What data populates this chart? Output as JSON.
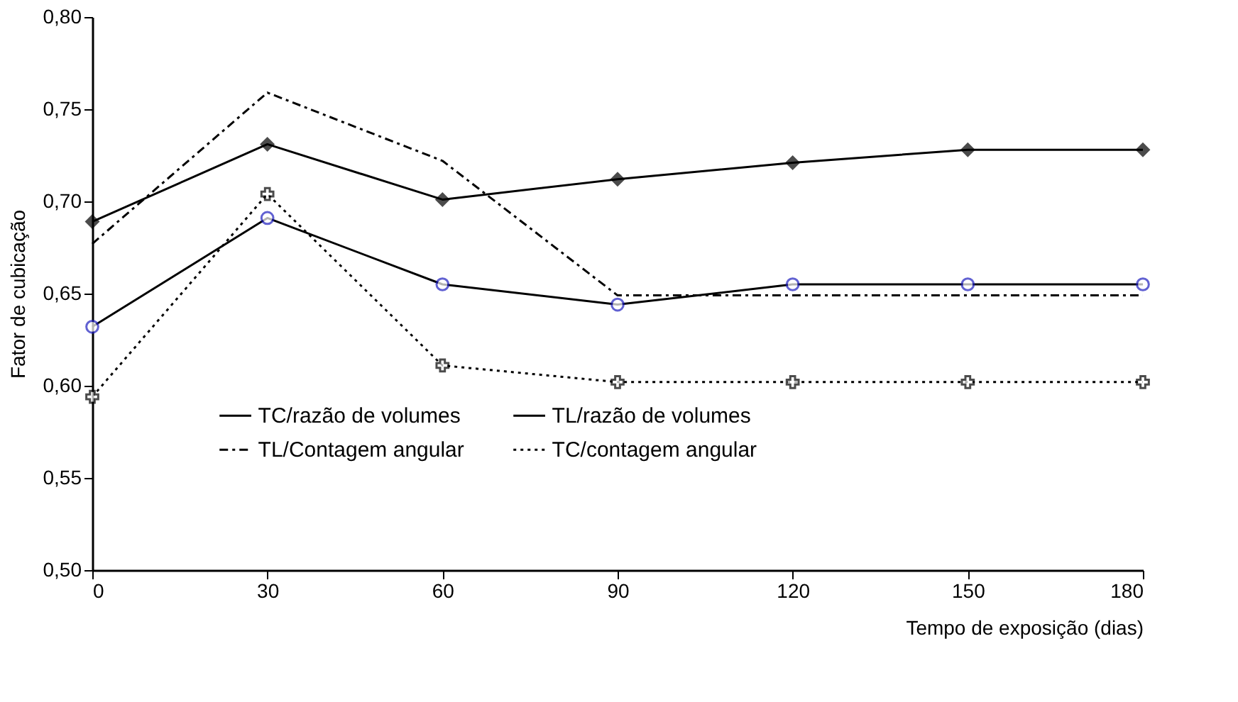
{
  "chart_data": {
    "type": "line",
    "xlabel": "Tempo de exposição (dias)",
    "ylabel": "Fator de cubicação",
    "x": [
      0,
      30,
      60,
      90,
      120,
      150,
      180
    ],
    "series": [
      {
        "name": "TC/razão de volumes",
        "color": "#000000",
        "marker": "circle",
        "line_style": "solid",
        "values": [
          0.632,
          0.691,
          0.655,
          0.644,
          0.655,
          0.655,
          0.655
        ]
      },
      {
        "name": "TL/razão de volumes",
        "color": "#000000",
        "marker": "diamond",
        "line_style": "solid",
        "values": [
          0.689,
          0.731,
          0.701,
          0.712,
          0.721,
          0.728,
          0.728
        ]
      },
      {
        "name": "TL/Contagem angular",
        "color": "#000000",
        "marker": "none",
        "line_style": "dashed",
        "values": [
          0.677,
          0.759,
          0.722,
          0.649,
          0.649,
          0.649,
          0.649
        ]
      },
      {
        "name": "TC/contagem angular",
        "color": "#000000",
        "marker": "cross",
        "line_style": "dotted",
        "values": [
          0.594,
          0.704,
          0.611,
          0.602,
          0.602,
          0.602,
          0.602
        ]
      }
    ],
    "xlim": [
      0,
      180
    ],
    "xticks": [
      0,
      30,
      60,
      90,
      120,
      150,
      180
    ],
    "ylim": [
      0.5,
      0.8
    ],
    "yticks": [
      {
        "value": 0.5,
        "label": "0,50"
      },
      {
        "value": 0.55,
        "label": "0,55"
      },
      {
        "value": 0.6,
        "label": "0,60"
      },
      {
        "value": 0.65,
        "label": "0,65"
      },
      {
        "value": 0.7,
        "label": "0,70"
      },
      {
        "value": 0.75,
        "label": "0,75"
      },
      {
        "value": 0.8,
        "label": "0,80"
      }
    ],
    "grid": false,
    "legend": "bottom"
  }
}
